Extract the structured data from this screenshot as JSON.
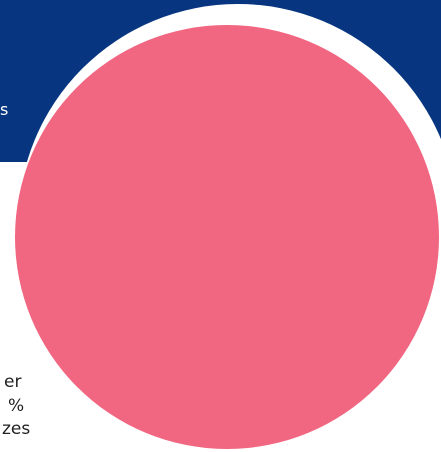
{
  "banner": {
    "text_fragment": "s",
    "color": "#07357f"
  },
  "graphic": {
    "circle_color": "#f16680",
    "ring_color": "#ffffff"
  },
  "body_text": {
    "line1": "er",
    "line2": "%",
    "line3": "zes"
  }
}
